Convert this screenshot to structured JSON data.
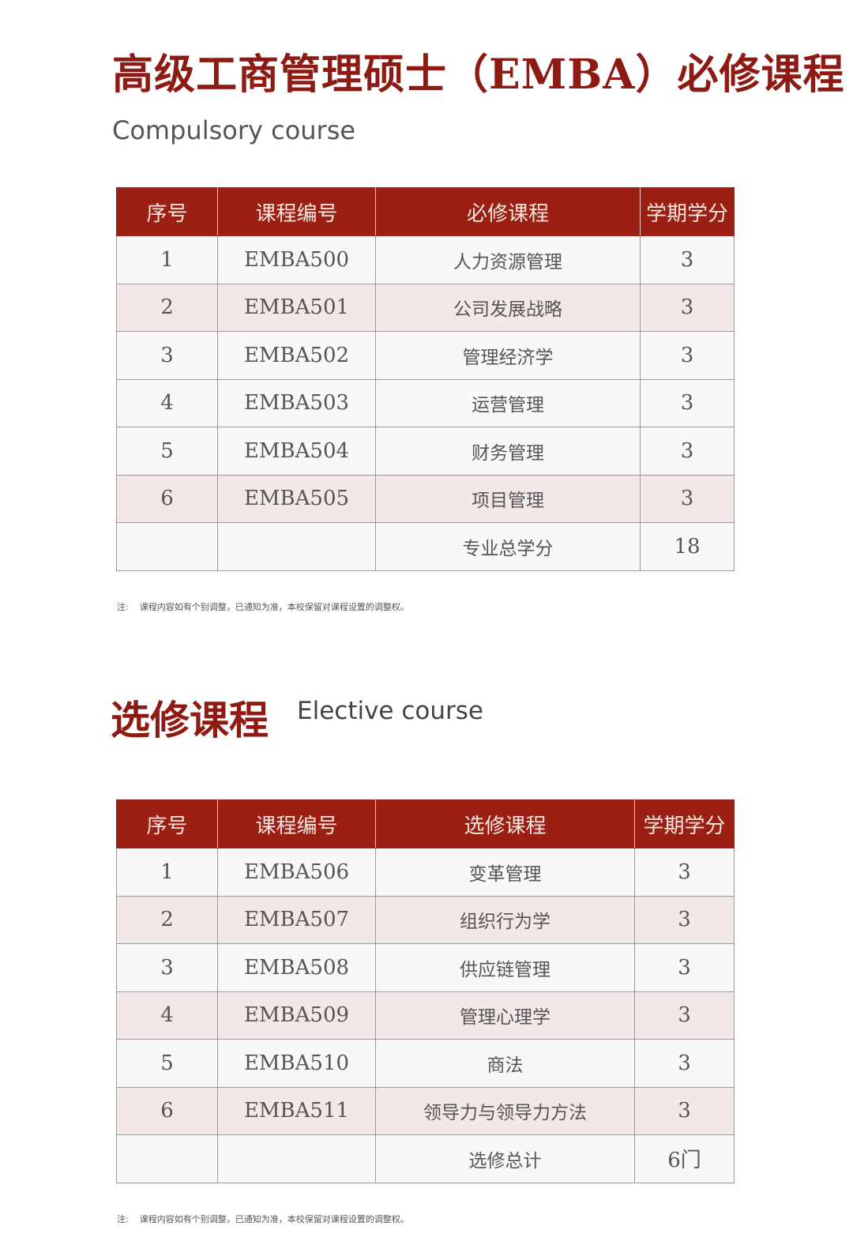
{
  "compulsory": {
    "title": "高级工商管理硕士（EMBA）必修课程",
    "subtitle": "Compulsory course",
    "headers": [
      "序号",
      "课程编号",
      "必修课程",
      "学期学分"
    ],
    "rows": [
      [
        "1",
        "EMBA500",
        "人力资源管理",
        "3"
      ],
      [
        "2",
        "EMBA501",
        "公司发展战略",
        "3"
      ],
      [
        "3",
        "EMBA502",
        "管理经济学",
        "3"
      ],
      [
        "4",
        "EMBA503",
        "运营管理",
        "3"
      ],
      [
        "5",
        "EMBA504",
        "财务管理",
        "3"
      ],
      [
        "6",
        "EMBA505",
        "项目管理",
        "3"
      ],
      [
        "",
        "",
        "专业总学分",
        "18"
      ]
    ],
    "note_label": "注:",
    "note": "课程内容如有个别调整，已通知为准，本校保留对课程设置的调整权。"
  },
  "elective": {
    "title": "选修课程",
    "subtitle": "Elective course",
    "headers": [
      "序号",
      "课程编号",
      "选修课程",
      "学期学分"
    ],
    "rows": [
      [
        "1",
        "EMBA506",
        "变革管理",
        "3"
      ],
      [
        "2",
        "EMBA507",
        "组织行为学",
        "3"
      ],
      [
        "3",
        "EMBA508",
        "供应链管理",
        "3"
      ],
      [
        "4",
        "EMBA509",
        "管理心理学",
        "3"
      ],
      [
        "5",
        "EMBA510",
        "商法",
        "3"
      ],
      [
        "6",
        "EMBA511",
        "领导力与领导力方法",
        "3"
      ],
      [
        "",
        "",
        "选修总计",
        "6门"
      ]
    ],
    "note_label": "注:",
    "note": "课程内容如有个别调整，已通知为准，本校保留对课程设置的调整权。"
  },
  "colors": {
    "accent": "#9b1f12",
    "title": "#8e1a14",
    "row_alt": "#f3e8e8"
  }
}
